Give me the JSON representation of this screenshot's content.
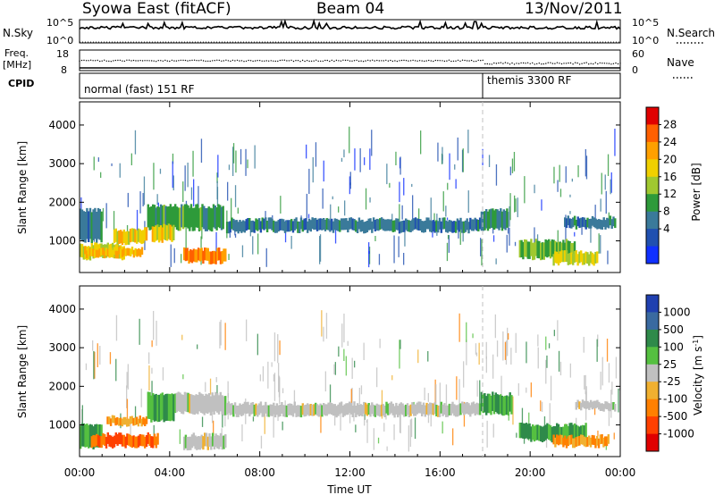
{
  "header": {
    "radar": "Syowa East (fitACF)",
    "beam": "Beam 04",
    "date": "13/Nov/2011"
  },
  "nsky_panel": {
    "left_label": "N.Sky",
    "left_ticks": [
      "10^5",
      "10^0"
    ],
    "right_label": "N.Search",
    "right_ticks": [
      "10^5",
      "10^0"
    ]
  },
  "freq_panel": {
    "left_label_line1": "Freq.",
    "left_label_line2": "[MHz]",
    "left_ticks": [
      "18",
      "8"
    ],
    "right_label": "Nave",
    "right_ticks": [
      "60",
      "0"
    ]
  },
  "cpid_panel": {
    "label": "CPID",
    "segments": [
      {
        "text": "normal (fast) 151 RF",
        "start_hour": 0
      },
      {
        "text": "themis 3300 RF",
        "start_hour": 18
      }
    ]
  },
  "power_panel": {
    "ylabel": "Slant Range [km]",
    "yticks": [
      "4000",
      "3000",
      "2000",
      "1000"
    ],
    "colorbar_title": "Power [dB]",
    "colorbar_ticks": [
      "28",
      "24",
      "20",
      "16",
      "12",
      "8",
      "4"
    ],
    "colorbar_colors": [
      "#e00000",
      "#ff6000",
      "#ffa000",
      "#f0d000",
      "#a0c830",
      "#2e9a3a",
      "#3a7a9a",
      "#2050b0",
      "#1030ff"
    ]
  },
  "velocity_panel": {
    "ylabel": "Slant Range [km]",
    "yticks": [
      "4000",
      "3000",
      "2000",
      "1000"
    ],
    "colorbar_title": "Velocity [m s^-1]",
    "colorbar_ticks": [
      "1000",
      "500",
      "100",
      "25",
      "-25",
      "-100",
      "-500",
      "-1000"
    ],
    "colorbar_colors": [
      "#2040b0",
      "#3a6aa0",
      "#2f8a4a",
      "#55c040",
      "#c0c0c0",
      "#f0b030",
      "#ff8000",
      "#ff4000",
      "#e00000"
    ]
  },
  "x_axis": {
    "ticks": [
      "00:00",
      "04:00",
      "08:00",
      "12:00",
      "16:00",
      "20:00",
      "00:00"
    ],
    "label": "Time UT"
  },
  "chart_data": {
    "type": "heatmap",
    "title": "Syowa East (fitACF) Beam 04 13/Nov/2011",
    "xlabel": "Time UT",
    "ylabel": "Slant Range [km]",
    "xlim_hours": [
      0,
      24
    ],
    "ylim_km": [
      180,
      4600
    ],
    "x_ticks": [
      "00:00",
      "04:00",
      "08:00",
      "12:00",
      "16:00",
      "20:00",
      "00:00"
    ],
    "y_ticks": [
      1000,
      2000,
      3000,
      4000
    ],
    "power_colorbar_db": [
      4,
      8,
      12,
      16,
      20,
      24,
      28
    ],
    "velocity_colorbar_ms": [
      -1000,
      -500,
      -100,
      -25,
      25,
      100,
      500,
      1000
    ],
    "power_blocks": [
      {
        "t0": 0.0,
        "t1": 2.0,
        "r0": 550,
        "r1": 900,
        "db": 20
      },
      {
        "t0": 0.2,
        "t1": 2.8,
        "r0": 600,
        "r1": 800,
        "db": 24
      },
      {
        "t0": 0.0,
        "t1": 1.0,
        "r0": 1000,
        "r1": 1800,
        "db": 10
      },
      {
        "t0": 1.5,
        "t1": 3.0,
        "r0": 950,
        "r1": 1300,
        "db": 22
      },
      {
        "t0": 3.0,
        "t1": 6.4,
        "r0": 1300,
        "r1": 1900,
        "db": 14
      },
      {
        "t0": 3.2,
        "t1": 4.2,
        "r0": 1000,
        "r1": 1400,
        "db": 22
      },
      {
        "t0": 4.6,
        "t1": 6.5,
        "r0": 450,
        "r1": 780,
        "db": 28
      },
      {
        "t0": 6.5,
        "t1": 17.8,
        "r0": 1250,
        "r1": 1550,
        "db": 10
      },
      {
        "t0": 17.8,
        "t1": 19.0,
        "r0": 1300,
        "r1": 1800,
        "db": 12
      },
      {
        "t0": 19.5,
        "t1": 22.0,
        "r0": 550,
        "r1": 1000,
        "db": 16
      },
      {
        "t0": 21.0,
        "t1": 23.0,
        "r0": 400,
        "r1": 700,
        "db": 20
      },
      {
        "t0": 21.5,
        "t1": 23.8,
        "r0": 1350,
        "r1": 1600,
        "db": 10
      }
    ],
    "velocity_blocks": [
      {
        "t0": 0.0,
        "t1": 1.0,
        "r0": 400,
        "r1": 1000,
        "ms": 100
      },
      {
        "t0": 0.5,
        "t1": 3.5,
        "r0": 450,
        "r1": 750,
        "ms": -500
      },
      {
        "t0": 1.2,
        "t1": 3.0,
        "r0": 1000,
        "r1": 1200,
        "ms": -100
      },
      {
        "t0": 3.0,
        "t1": 4.2,
        "r0": 1100,
        "r1": 1800,
        "ms": 100
      },
      {
        "t0": 4.2,
        "t1": 6.5,
        "r0": 1300,
        "r1": 1800,
        "ms": 0
      },
      {
        "t0": 4.6,
        "t1": 6.5,
        "r0": 400,
        "r1": 750,
        "ms": 0
      },
      {
        "t0": 6.5,
        "t1": 17.8,
        "r0": 1250,
        "r1": 1550,
        "ms": 0
      },
      {
        "t0": 17.8,
        "t1": 19.2,
        "r0": 1300,
        "r1": 1800,
        "ms": 100
      },
      {
        "t0": 19.5,
        "t1": 22.5,
        "r0": 600,
        "r1": 1000,
        "ms": 100
      },
      {
        "t0": 21.0,
        "t1": 23.5,
        "r0": 450,
        "r1": 700,
        "ms": -100
      },
      {
        "t0": 22.0,
        "t1": 23.8,
        "r0": 1400,
        "r1": 1600,
        "ms": 0
      }
    ]
  }
}
